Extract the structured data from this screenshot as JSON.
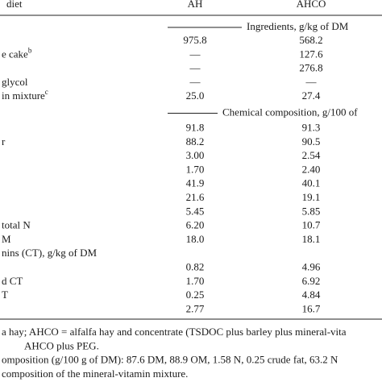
{
  "table": {
    "header": [
      "diet",
      "AH",
      "AHCO"
    ],
    "rows": [
      {
        "section": "Ingredients, g/kg of DM"
      },
      {
        "ah": "975.8",
        "ahco": "568.2"
      },
      {
        "label": "e cake",
        "note": "b",
        "ah": "—",
        "ahco": "127.6"
      },
      {
        "ah": "—",
        "ahco": "276.8"
      },
      {
        "label": "glycol",
        "ah": "—",
        "ahco": "—"
      },
      {
        "label": "in mixture",
        "note": "c",
        "ah": "25.0",
        "ahco": "27.4"
      },
      {
        "section": "Chemical composition, g/100 of"
      },
      {
        "ah": "91.8",
        "ahco": "91.3"
      },
      {
        "label": "r",
        "ah": "88.2",
        "ahco": "90.5"
      },
      {
        "ah": "3.00",
        "ahco": "2.54"
      },
      {
        "ah": "1.70",
        "ahco": "2.40"
      },
      {
        "ah": "41.9",
        "ahco": "40.1"
      },
      {
        "ah": "21.6",
        "ahco": "19.1"
      },
      {
        "ah": "5.45",
        "ahco": "5.85"
      },
      {
        "label": "total N",
        "ah": "6.20",
        "ahco": "10.7"
      },
      {
        "label": "M",
        "ah": "18.0",
        "ahco": "18.1"
      },
      {
        "label": "nins (CT), g/kg of DM"
      },
      {
        "ah": "0.82",
        "ahco": "4.96"
      },
      {
        "label": "d CT",
        "ah": "1.70",
        "ahco": "6.92"
      },
      {
        "label": "T",
        "ah": "0.25",
        "ahco": "4.84"
      },
      {
        "ah": "2.77",
        "ahco": "16.7"
      }
    ],
    "footnotes": [
      "a hay; AHCO = alfalfa hay and concentrate (TSDOC plus barley plus mineral-vita",
      "AHCO plus PEG.",
      "omposition (g/100 g of DM): 87.6 DM, 88.9 OM, 1.58 N, 0.25 crude fat, 63.2 N",
      "composition of the mineral-vitamin mixture."
    ]
  }
}
